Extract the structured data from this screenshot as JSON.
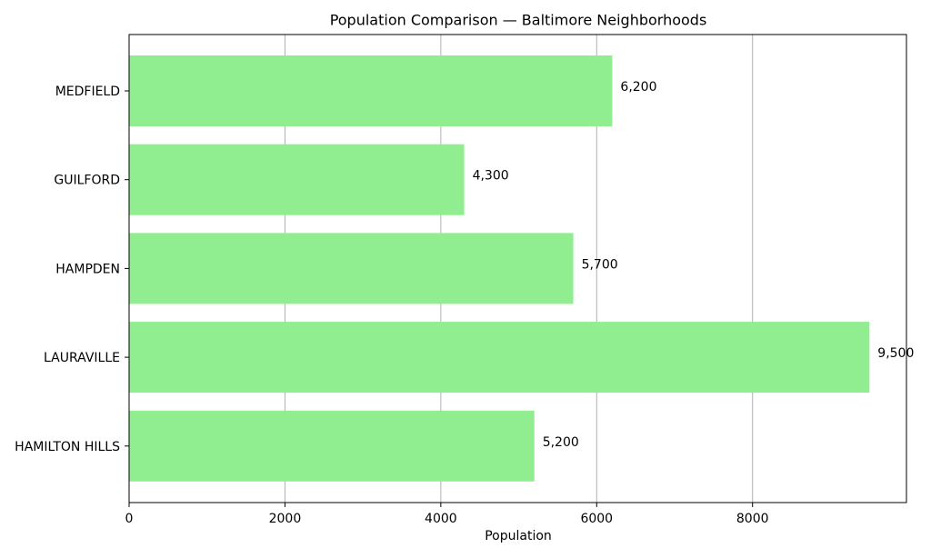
{
  "chart_data": {
    "type": "barh",
    "title": "Population Comparison — Baltimore Neighborhoods",
    "xlabel": "Population",
    "categories": [
      "MEDFIELD",
      "GUILFORD",
      "HAMPDEN",
      "LAURAVILLE",
      "HAMILTON HILLS"
    ],
    "values": [
      6200,
      4300,
      5700,
      9500,
      5200
    ],
    "value_labels": [
      "6,200",
      "4,300",
      "5,700",
      "9,500",
      "5,200"
    ],
    "color": "#90ee90",
    "xlim": [
      0,
      9975
    ],
    "xticks": [
      0,
      2000,
      4000,
      6000,
      8000
    ],
    "grid": true
  }
}
